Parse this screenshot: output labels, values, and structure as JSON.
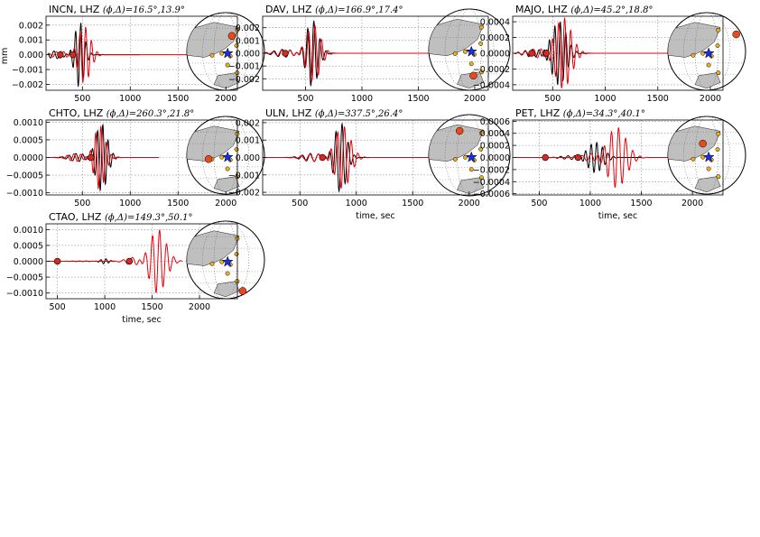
{
  "figure": {
    "ylabel_shared": "mm"
  },
  "chart_data": [
    {
      "type": "line",
      "title_station": "INCN, LHZ",
      "title_params": "(ϕ,Δ)=16.5°,13.9°",
      "xlabel": "",
      "ylabel": "mm",
      "xlim": [
        120,
        2120
      ],
      "ylim": [
        -0.0024,
        0.0026
      ],
      "xticks": [
        500,
        1000,
        1500,
        2000
      ],
      "yticks": [
        -0.002,
        -0.001,
        0.0,
        0.001,
        0.002
      ],
      "ytick_labels": [
        "−0.002",
        "−0.001",
        "0.000",
        "0.001",
        "0.002"
      ],
      "grid": true,
      "markers": [
        {
          "x": 270,
          "color": "#d62a1e"
        },
        {
          "x": 400,
          "color": "#d62a1e"
        }
      ],
      "series": [
        {
          "color": "#000000",
          "start": 140,
          "end": 1100,
          "center": 470,
          "amp": 0.0022,
          "period": 55,
          "width": 70
        },
        {
          "color": "#e8000b",
          "start": 140,
          "end": 2020,
          "center": 520,
          "amp": 0.0019,
          "period": 60,
          "width": 90
        }
      ],
      "map": {
        "event": [
          0.58,
          0.3
        ],
        "station_angle": 20
      }
    },
    {
      "type": "line",
      "title_station": "DAV, LHZ",
      "title_params": "(ϕ,Δ)=166.9°,17.4°",
      "xlabel": "",
      "ylabel": "",
      "xlim": [
        120,
        2120
      ],
      "ylim": [
        -0.0029,
        0.0029
      ],
      "xticks": [
        500,
        1000,
        1500,
        2000
      ],
      "yticks": [
        -0.002,
        -0.001,
        0.0,
        0.001,
        0.002
      ],
      "ytick_labels": [
        "−0.002",
        "−0.001",
        "0.000",
        "0.001",
        "0.002"
      ],
      "grid": true,
      "markers": [
        {
          "x": 320,
          "color": "#d62a1e"
        }
      ],
      "series": [
        {
          "color": "#000000",
          "start": 140,
          "end": 1100,
          "center": 560,
          "amp": 0.0026,
          "period": 55,
          "width": 75
        },
        {
          "color": "#e8000b",
          "start": 140,
          "end": 2020,
          "center": 570,
          "amp": 0.0022,
          "period": 58,
          "width": 85
        }
      ],
      "map": {
        "event": [
          0.55,
          0.82
        ],
        "station_angle": 160
      }
    },
    {
      "type": "line",
      "title_station": "MAJO, LHZ",
      "title_params": "(ϕ,Δ)=45.2°,18.8°",
      "xlabel": "",
      "ylabel": "",
      "xlim": [
        120,
        2120
      ],
      "ylim": [
        -0.00047,
        0.00047
      ],
      "xticks": [
        500,
        1000,
        1500,
        2000
      ],
      "yticks": [
        -0.0004,
        -0.0002,
        0.0,
        0.0002,
        0.0004
      ],
      "ytick_labels": [
        "−0.0004",
        "−0.0002",
        "0.0000",
        "0.0002",
        "0.0004"
      ],
      "grid": true,
      "markers": [
        {
          "x": 300,
          "color": "#d62a1e"
        },
        {
          "x": 440,
          "color": "#d62a1e"
        }
      ],
      "series": [
        {
          "color": "#000000",
          "start": 140,
          "end": 1100,
          "center": 560,
          "amp": 0.0004,
          "period": 52,
          "width": 100
        },
        {
          "color": "#e8000b",
          "start": 140,
          "end": 2020,
          "center": 600,
          "amp": 0.00045,
          "period": 58,
          "width": 110
        }
      ],
      "map": {
        "event": [
          0.88,
          0.28
        ],
        "station_angle": 45
      }
    },
    {
      "type": "line",
      "title_station": "CHTO, LHZ",
      "title_params": "(ϕ,Δ)=260.3°,21.8°",
      "xlabel": "",
      "ylabel": "",
      "xlim": [
        120,
        2120
      ],
      "ylim": [
        -0.00106,
        0.00106
      ],
      "xticks": [
        500,
        1000,
        1500,
        2000
      ],
      "yticks": [
        -0.001,
        -0.0005,
        0.0,
        0.0005,
        0.001
      ],
      "ytick_labels": [
        "−0.0010",
        "−0.0005",
        "0.0000",
        "0.0005",
        "0.0010"
      ],
      "grid": true,
      "markers": [
        {
          "x": 590,
          "color": "#d62a1e"
        }
      ],
      "series": [
        {
          "color": "#000000",
          "start": 140,
          "end": 1300,
          "center": 700,
          "amp": 0.00095,
          "period": 55,
          "width": 85
        },
        {
          "color": "#e8000b",
          "start": 140,
          "end": 1300,
          "center": 680,
          "amp": 0.0009,
          "period": 55,
          "width": 80
        }
      ],
      "map": {
        "event": [
          0.28,
          0.55
        ],
        "station_angle": 260
      }
    },
    {
      "type": "line",
      "title_station": "ULN, LHZ",
      "title_params": "(ϕ,Δ)=337.5°,26.4°",
      "xlabel": "time, sec",
      "ylabel": "",
      "xlim": [
        170,
        2170
      ],
      "ylim": [
        -0.00215,
        0.00215
      ],
      "xticks": [
        500,
        1000,
        1500,
        2000
      ],
      "yticks": [
        -0.002,
        -0.001,
        0.0,
        0.001,
        0.002
      ],
      "ytick_labels": [
        "−0.002",
        "−0.001",
        "0.000",
        "0.001",
        "0.002"
      ],
      "grid": true,
      "markers": [
        {
          "x": 700,
          "color": "#d62a1e"
        }
      ],
      "series": [
        {
          "color": "#000000",
          "start": 190,
          "end": 1500,
          "center": 860,
          "amp": 0.002,
          "period": 55,
          "width": 75
        },
        {
          "color": "#e8000b",
          "start": 190,
          "end": 2120,
          "center": 880,
          "amp": 0.0018,
          "period": 60,
          "width": 95
        }
      ],
      "map": {
        "event": [
          0.38,
          0.2
        ],
        "station_angle": 337
      }
    },
    {
      "type": "line",
      "title_station": "PET, LHZ",
      "title_params": "(ϕ,Δ)=34.3°,40.1°",
      "xlabel": "time, sec",
      "ylabel": "",
      "xlim": [
        240,
        2300
      ],
      "ylim": [
        -0.00062,
        0.00062
      ],
      "xticks": [
        500,
        1000,
        1500,
        2000
      ],
      "yticks": [
        -0.0006,
        -0.0004,
        -0.0002,
        0.0,
        0.0002,
        0.0004,
        0.0006
      ],
      "ytick_labels": [
        "−0.0006",
        "−0.0004",
        "−0.0002",
        "0.0000",
        "0.0002",
        "0.0004",
        "0.0006"
      ],
      "grid": true,
      "markers": [
        {
          "x": 560,
          "color": "#d62a1e"
        },
        {
          "x": 880,
          "color": "#d62a1e"
        }
      ],
      "series": [
        {
          "color": "#000000",
          "start": 260,
          "end": 1500,
          "center": 1050,
          "amp": 0.00025,
          "period": 55,
          "width": 110
        },
        {
          "color": "#e8000b",
          "start": 260,
          "end": 1850,
          "center": 1260,
          "amp": 0.0005,
          "period": 70,
          "width": 130
        }
      ],
      "map": {
        "event": [
          0.45,
          0.35
        ],
        "station_angle": 34
      }
    },
    {
      "type": "line",
      "title_station": "CTAO, LHZ",
      "title_params": "(ϕ,Δ)=149.3°,50.1°",
      "xlabel": "time, sec",
      "ylabel": "",
      "xlim": [
        380,
        2400
      ],
      "ylim": [
        -0.00118,
        0.00118
      ],
      "xticks": [
        500,
        1000,
        1500,
        2000
      ],
      "yticks": [
        -0.001,
        -0.0005,
        0.0,
        0.0005,
        0.001
      ],
      "ytick_labels": [
        "−0.0010",
        "−0.0005",
        "0.0000",
        "0.0005",
        "0.0010"
      ],
      "grid": true,
      "markers": [
        {
          "x": 500,
          "color": "#d62a1e"
        },
        {
          "x": 1260,
          "color": "#d62a1e"
        }
      ],
      "series": [
        {
          "color": "#000000",
          "start": 400,
          "end": 1100,
          "center": 1000,
          "amp": 8e-05,
          "period": 55,
          "width": 60
        },
        {
          "color": "#e8000b",
          "start": 400,
          "end": 1820,
          "center": 1560,
          "amp": 0.001,
          "period": 75,
          "width": 120
        }
      ],
      "map": {
        "event": [
          0.72,
          0.9
        ],
        "station_angle": 149
      }
    }
  ]
}
